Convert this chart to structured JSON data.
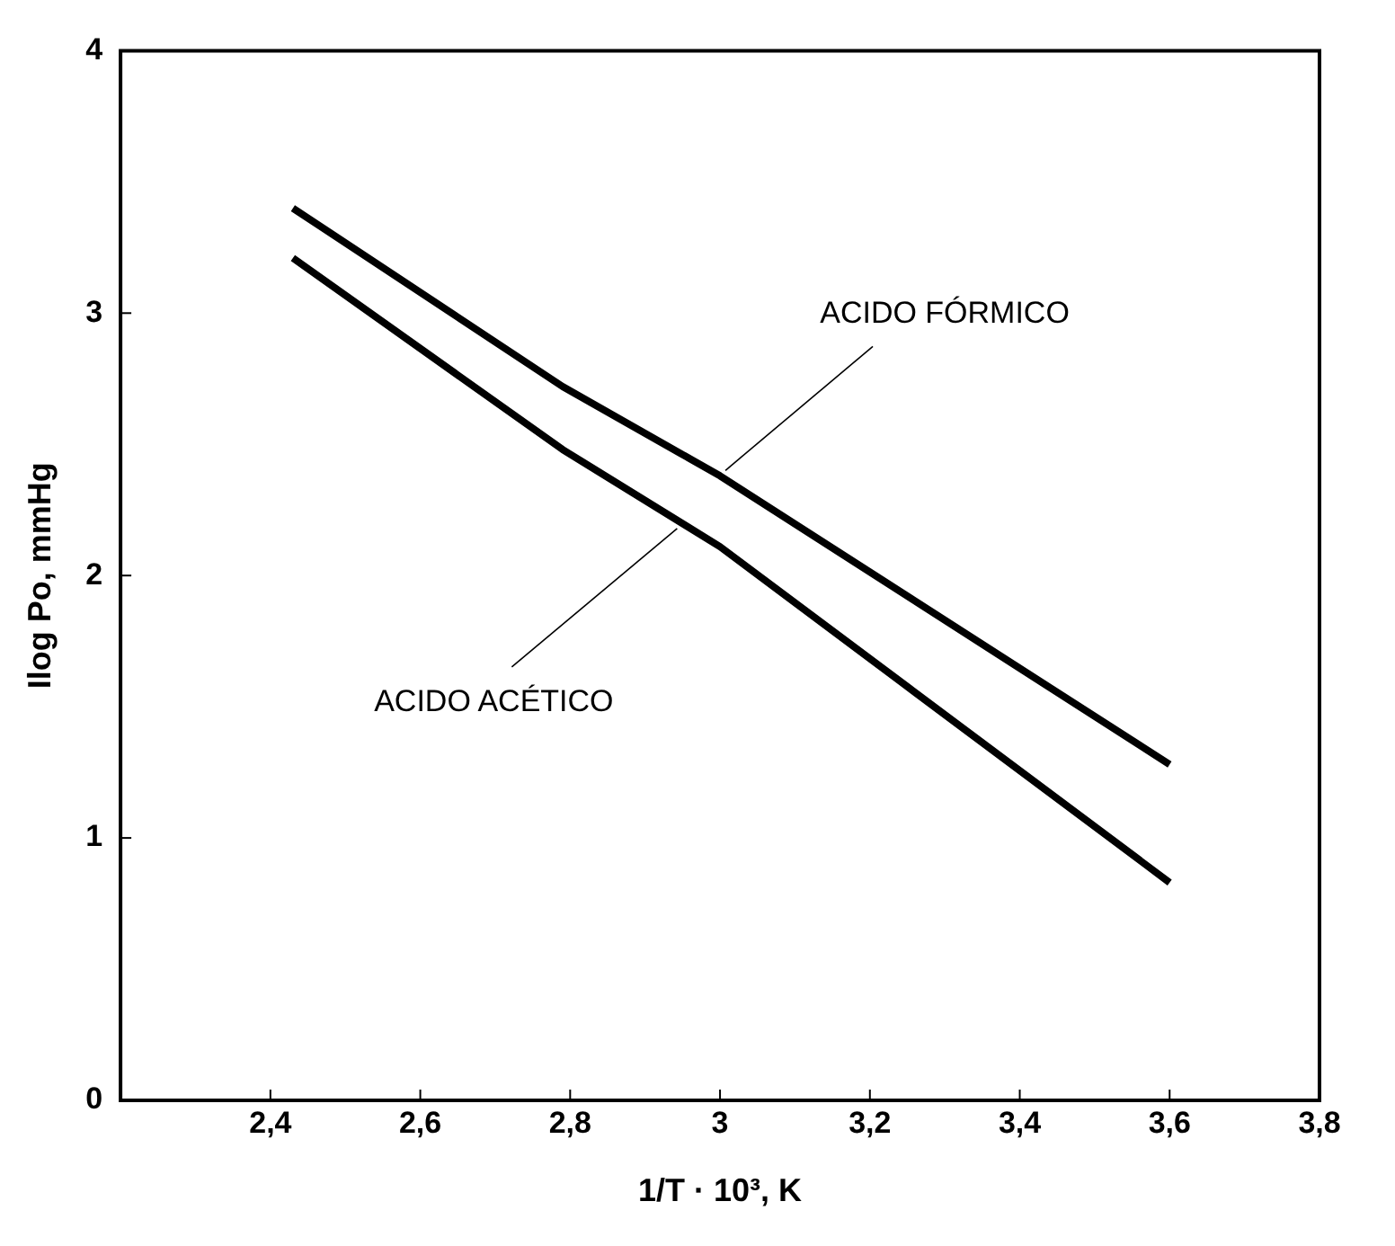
{
  "chart_data": {
    "type": "line",
    "xlabel": "1/T · 10³, K",
    "ylabel": "Ilog Po, mmHg",
    "xlim": [
      2.2,
      3.8
    ],
    "xticks": [
      {
        "value": 2.4,
        "label": "2,4"
      },
      {
        "value": 2.6,
        "label": "2,6"
      },
      {
        "value": 2.8,
        "label": "2,8"
      },
      3,
      {
        "value": 3.2,
        "label": "3,2"
      },
      {
        "value": 3.4,
        "label": "3,4"
      },
      {
        "value": 3.6,
        "label": "3,6"
      },
      {
        "value": 3.8,
        "label": "3,8"
      }
    ],
    "ylim": [
      0,
      4
    ],
    "yticks": [
      0,
      1,
      2,
      3,
      4
    ],
    "grid": false,
    "legend": false,
    "marker": "none",
    "line_style": "solid",
    "series": [
      {
        "color": "#000000",
        "x": [
          2.43,
          2.79,
          3.0,
          3.6
        ],
        "values": [
          3.4,
          2.72,
          2.38,
          1.28
        ]
      },
      {
        "color": "#000000",
        "x": [
          2.43,
          2.79,
          3.0,
          3.6
        ],
        "values": [
          3.21,
          2.48,
          2.11,
          0.83
        ]
      }
    ],
    "annotations": [
      {
        "text": "ACIDO FÓRMICO",
        "x": 3.0,
        "y": 2.38
      },
      {
        "text": "ACIDO ACÉTICO",
        "x": 2.95,
        "y": 2.2
      }
    ]
  }
}
